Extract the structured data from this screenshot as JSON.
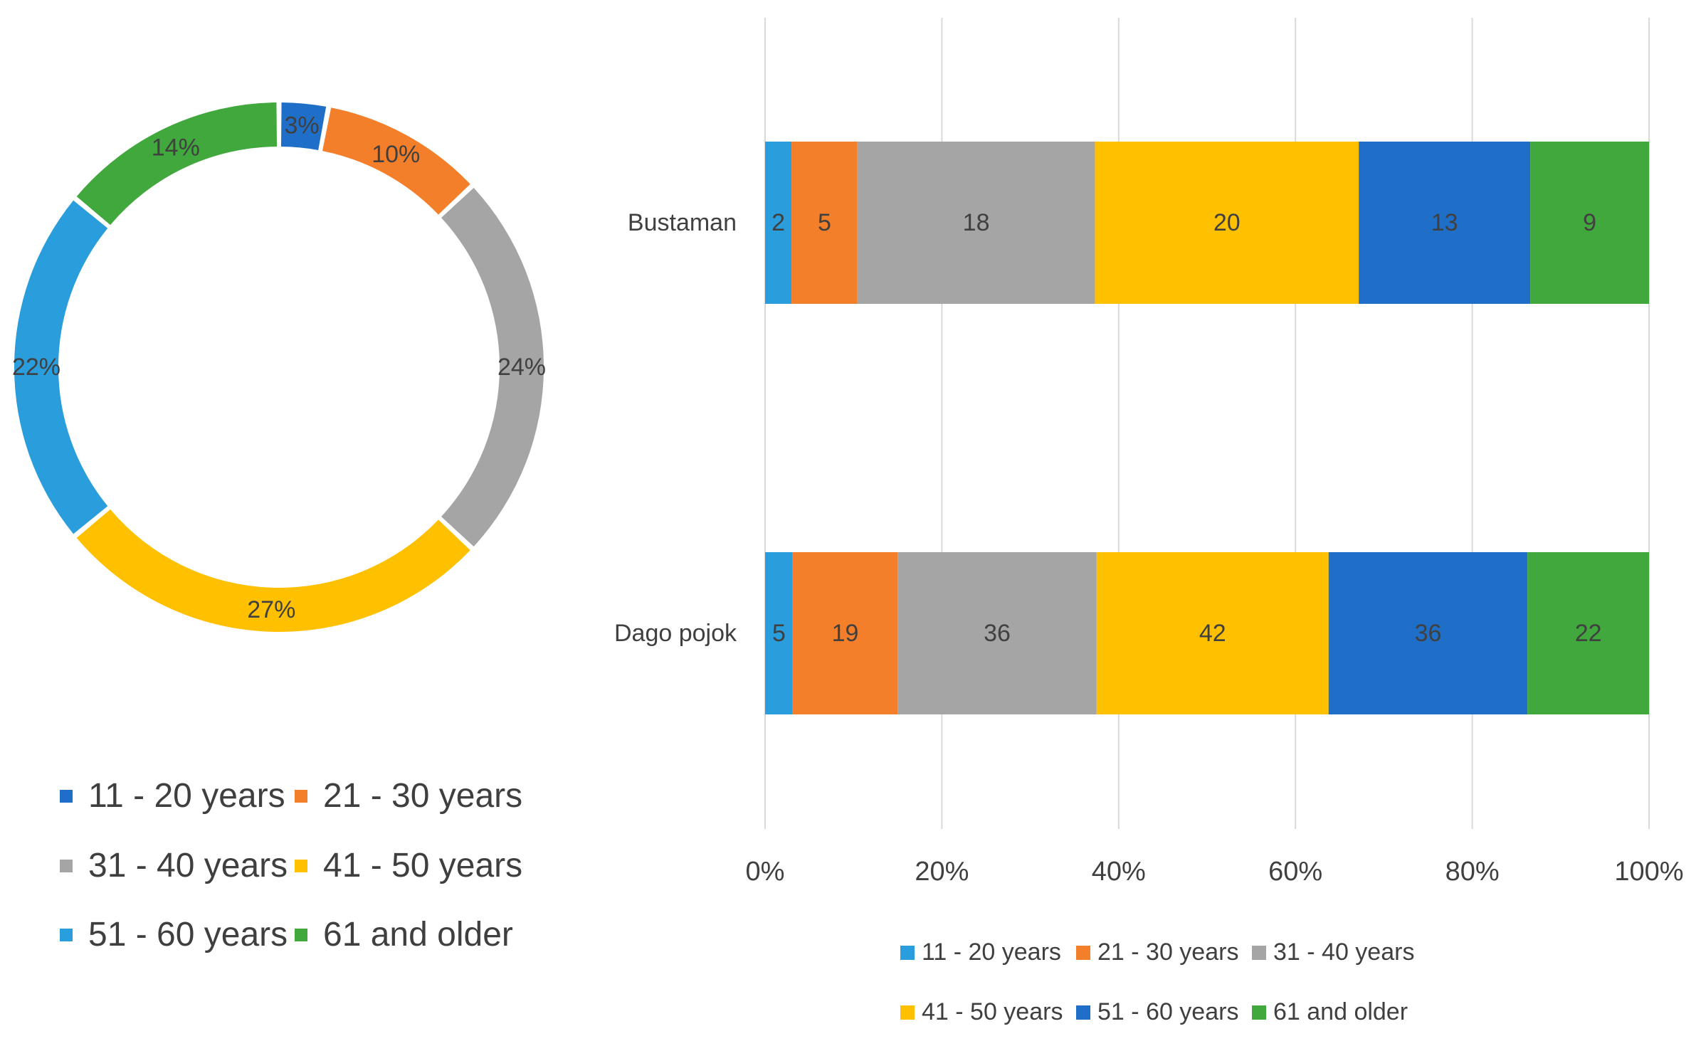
{
  "chart_data": [
    {
      "type": "pie",
      "variant": "donut",
      "categories": [
        "11 - 20 years",
        "21 - 30 years",
        "31 - 40 years",
        "41 - 50 years",
        "51 - 60 years",
        "61 and older"
      ],
      "values": [
        3,
        10,
        24,
        27,
        22,
        14
      ],
      "labels": [
        "3%",
        "10%",
        "24%",
        "27%",
        "22%",
        "14%"
      ],
      "colors": [
        "#1f6fc8",
        "#f47f2a",
        "#a5a5a5",
        "#ffc000",
        "#2a9ddc",
        "#40a83c"
      ],
      "legend_position": "bottom"
    },
    {
      "type": "bar",
      "orientation": "horizontal",
      "stacked": "percent",
      "categories": [
        "Bustaman",
        "Dago pojok"
      ],
      "series": [
        {
          "name": "11 - 20 years",
          "color": "#2a9ddc",
          "values": [
            2,
            5
          ]
        },
        {
          "name": "21 - 30 years",
          "color": "#f47f2a",
          "values": [
            5,
            19
          ]
        },
        {
          "name": "31 - 40 years",
          "color": "#a5a5a5",
          "values": [
            18,
            36
          ]
        },
        {
          "name": "41 - 50 years",
          "color": "#ffc000",
          "values": [
            20,
            42
          ]
        },
        {
          "name": "51 - 60 years",
          "color": "#1f6fc8",
          "values": [
            13,
            36
          ]
        },
        {
          "name": "61 and older",
          "color": "#40a83c",
          "values": [
            9,
            22
          ]
        }
      ],
      "xlim": [
        0,
        100
      ],
      "xticks": [
        0,
        20,
        40,
        60,
        80,
        100
      ],
      "xtick_labels": [
        "0%",
        "20%",
        "40%",
        "60%",
        "80%",
        "100%"
      ],
      "grid": true,
      "legend_position": "bottom"
    }
  ]
}
